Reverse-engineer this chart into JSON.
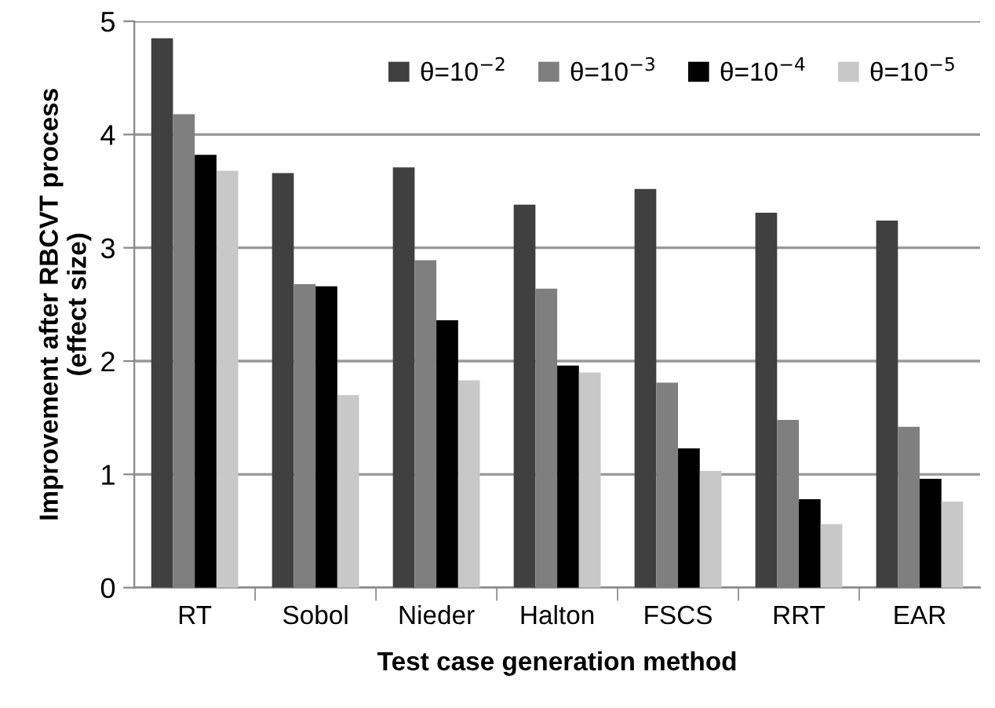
{
  "chart_data": {
    "type": "bar",
    "xlabel": "Test case generation method",
    "ylabel": "Improvement after RBCVT process\n(effect size)",
    "categories": [
      "RT",
      "Sobol",
      "Nieder",
      "Halton",
      "FSCS",
      "RRT",
      "EAR"
    ],
    "series": [
      {
        "name": "θ=10$^{−2}$",
        "color": "#404040",
        "values": [
          4.85,
          3.66,
          3.71,
          3.38,
          3.52,
          3.31,
          3.24
        ]
      },
      {
        "name": "θ=10$^{−3}$",
        "color": "#7f7f7f",
        "values": [
          4.18,
          2.68,
          2.89,
          2.64,
          1.81,
          1.48,
          1.42
        ]
      },
      {
        "name": "θ=10$^{−4}$",
        "color": "#000000",
        "values": [
          3.82,
          2.66,
          2.36,
          1.96,
          1.23,
          0.78,
          0.96
        ]
      },
      {
        "name": "θ=10$^{−5}$",
        "color": "#c8c8c8",
        "values": [
          3.68,
          1.7,
          1.83,
          1.9,
          1.03,
          0.56,
          0.76
        ]
      }
    ],
    "ylim": [
      0,
      5
    ],
    "yticks": [
      0,
      1,
      2,
      3,
      4,
      5
    ],
    "grid": "y",
    "legend": "top right"
  }
}
